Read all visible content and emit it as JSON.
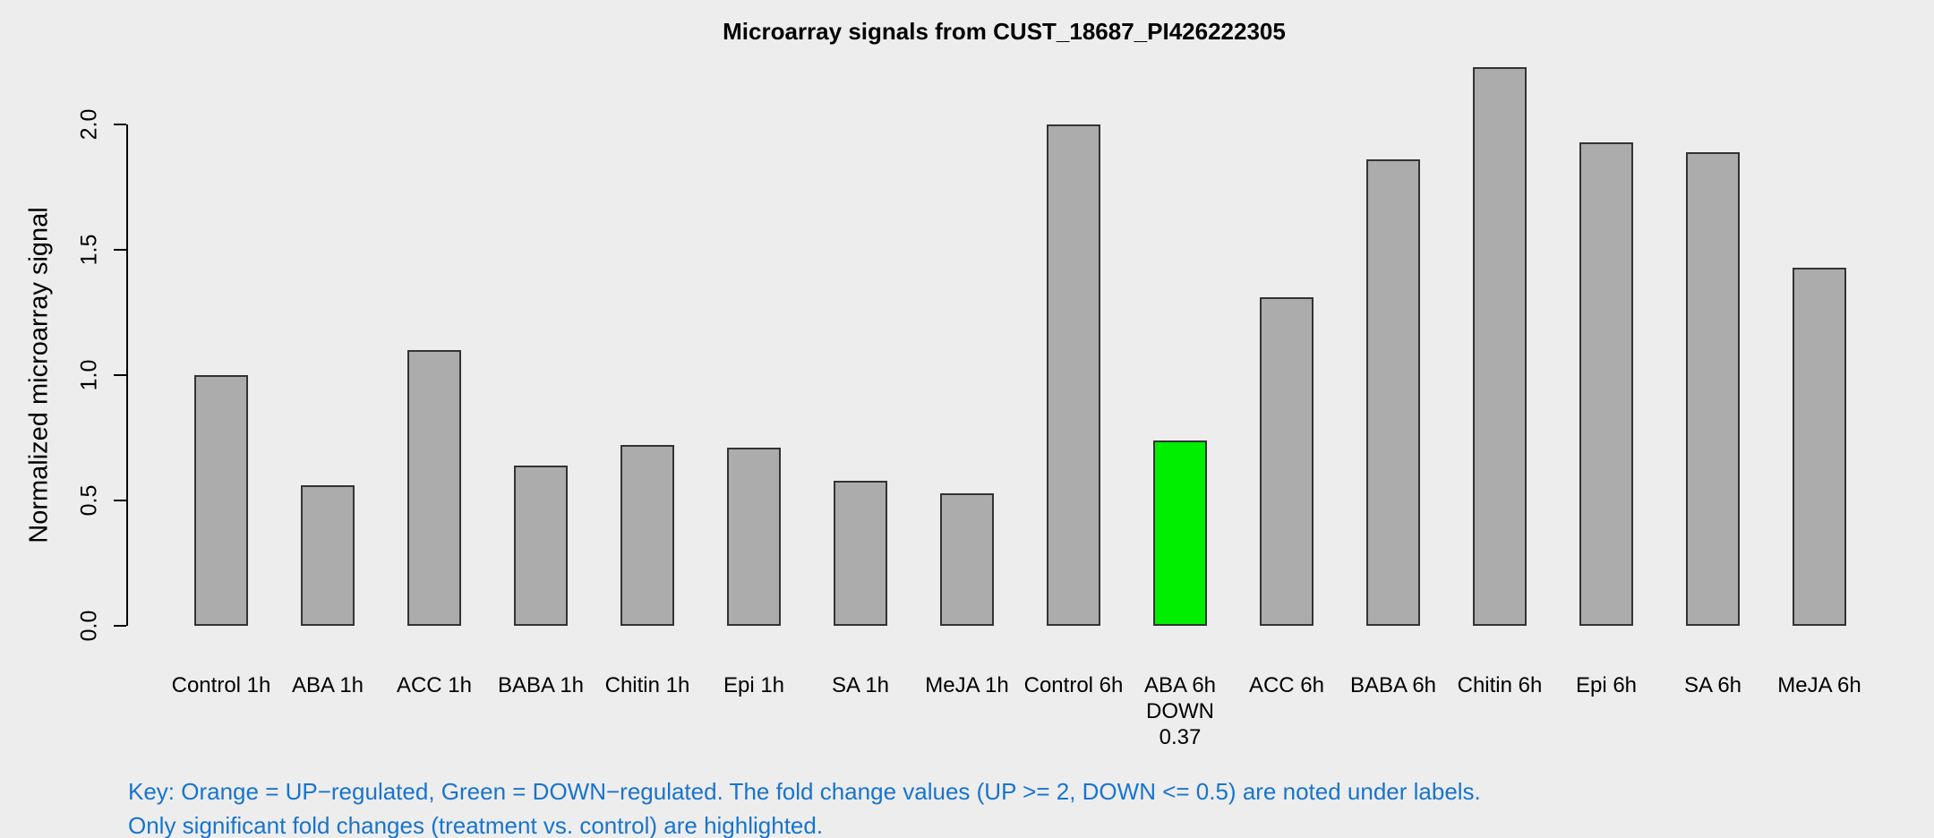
{
  "title": "Microarray signals from CUST_18687_PI426222305",
  "y_axis": {
    "label": "Normalized microarray signal",
    "tick_labels": [
      "0.0",
      "0.5",
      "1.0",
      "1.5",
      "2.0"
    ],
    "tick_values": [
      0.0,
      0.5,
      1.0,
      1.5,
      2.0
    ]
  },
  "key": {
    "line1": "Key: Orange = UP−regulated, Green = DOWN−regulated. The fold change values (UP >= 2, DOWN <= 0.5) are noted under labels.",
    "line2": "Only significant fold changes (treatment vs. control) are highlighted."
  },
  "colors": {
    "background": "#EDEDED",
    "bar_fill": "#ACACAC",
    "bar_border": "#333333",
    "down_highlight_fill": "#00EE00",
    "key_text": "#1874CD",
    "axis": "#000000"
  },
  "chart_data": {
    "type": "bar",
    "title": "Microarray signals from CUST_18687_PI426222305",
    "xlabel": "",
    "ylabel": "Normalized microarray signal",
    "ylim": [
      0,
      2.3
    ],
    "yticks": [
      0.0,
      0.5,
      1.0,
      1.5,
      2.0
    ],
    "grid": false,
    "legend": false,
    "categories": [
      "Control 1h",
      "ABA 1h",
      "ACC 1h",
      "BABA 1h",
      "Chitin 1h",
      "Epi 1h",
      "SA 1h",
      "MeJA 1h",
      "Control 6h",
      "ABA 6h",
      "ACC 6h",
      "BABA 6h",
      "Chitin 6h",
      "Epi 6h",
      "SA 6h",
      "MeJA 6h"
    ],
    "values": [
      1.0,
      0.56,
      1.1,
      0.64,
      0.72,
      0.71,
      0.58,
      0.53,
      2.0,
      0.74,
      1.31,
      1.86,
      2.23,
      1.93,
      1.89,
      1.43
    ],
    "annotations": [
      {
        "index": 9,
        "category": "ABA 6h",
        "lines_below_label": [
          "DOWN",
          "0.37"
        ],
        "bar_color": "#00EE00"
      }
    ]
  }
}
